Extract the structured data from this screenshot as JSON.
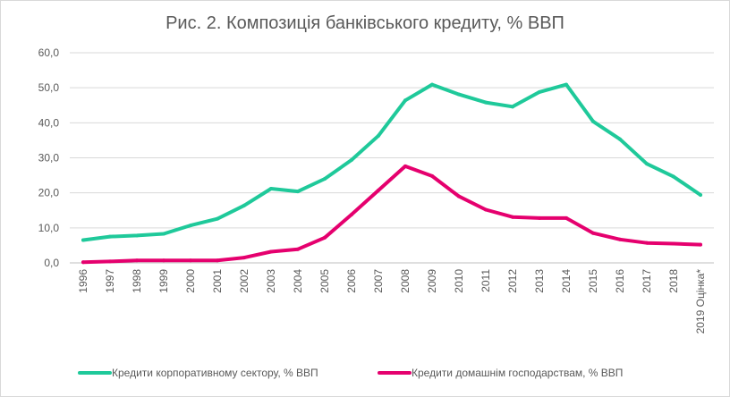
{
  "chart_data": {
    "type": "line",
    "title": "Рис. 2. Композиція банківського кредиту, % ВВП",
    "categories": [
      "1996",
      "1997",
      "1998",
      "1999",
      "2000",
      "2001",
      "2002",
      "2003",
      "2004",
      "2005",
      "2006",
      "2007",
      "2008",
      "2009",
      "2010",
      "2011",
      "2012",
      "2013",
      "2014",
      "2015",
      "2016",
      "2017",
      "2018",
      "2019 Оцінка*"
    ],
    "ylim": [
      0,
      60
    ],
    "yticks": [
      "0,0",
      "10,0",
      "20,0",
      "30,0",
      "40,0",
      "50,0",
      "60,0"
    ],
    "grid": true,
    "legend": "bottom",
    "series": [
      {
        "name": "Кредити корпоративному сектору, % ВВП",
        "color": "#1fc99a",
        "values": [
          6.5,
          7.5,
          7.8,
          8.3,
          10.7,
          12.6,
          16.4,
          21.2,
          20.4,
          24.0,
          29.4,
          36.3,
          46.4,
          50.9,
          48.1,
          45.8,
          44.6,
          48.8,
          50.9,
          40.4,
          35.3,
          28.3,
          24.6,
          19.4
        ]
      },
      {
        "name": "Кредити домашнім господарствам, % ВВП",
        "color": "#e5006e",
        "values": [
          0.2,
          0.4,
          0.7,
          0.7,
          0.7,
          0.7,
          1.5,
          3.2,
          3.9,
          7.2,
          13.8,
          20.7,
          27.6,
          24.8,
          19.0,
          15.2,
          13.1,
          12.8,
          12.8,
          8.5,
          6.7,
          5.7,
          5.5,
          5.2
        ]
      }
    ]
  }
}
